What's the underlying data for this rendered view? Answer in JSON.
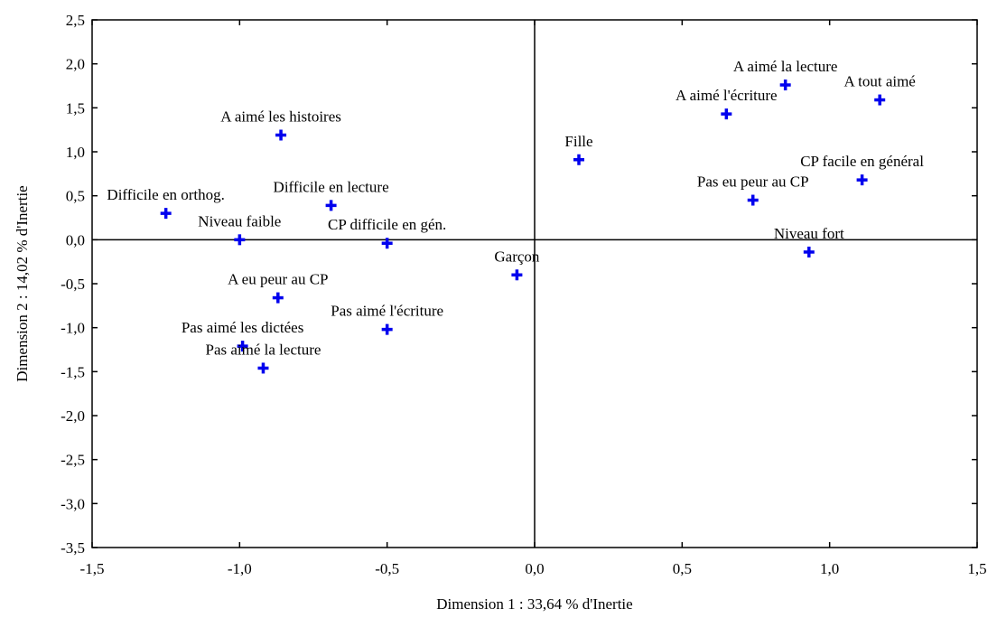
{
  "chart_data": {
    "type": "scatter",
    "xlabel": "Dimension 1 : 33,64 % d'Inertie",
    "ylabel": "Dimension 2 : 14,02 % d'Inertie",
    "xlim": [
      -1.5,
      1.5
    ],
    "ylim": [
      -3.5,
      2.5
    ],
    "x_ticks": [
      "-1,5",
      "-1,0",
      "-0,5",
      "0,0",
      "0,5",
      "1,0",
      "1,5"
    ],
    "y_ticks": [
      "2,5",
      "2,0",
      "1,5",
      "1,0",
      "0,5",
      "0,0",
      "-0,5",
      "-1,0",
      "-1,5",
      "-2,0",
      "-2,5",
      "-3,0",
      "-3,5"
    ],
    "marker_color": "#0000ee",
    "grid": false,
    "reference_lines": "x=0 and y=0",
    "points": [
      {
        "label": "A aimé la lecture",
        "x": 0.85,
        "y": 1.76
      },
      {
        "label": "A tout aimé",
        "x": 1.17,
        "y": 1.59
      },
      {
        "label": "A aimé l'écriture",
        "x": 0.65,
        "y": 1.43
      },
      {
        "label": "A aimé les histoires",
        "x": -0.86,
        "y": 1.19
      },
      {
        "label": "Fille",
        "x": 0.15,
        "y": 0.91
      },
      {
        "label": "CP facile en général",
        "x": 1.11,
        "y": 0.68
      },
      {
        "label": "Pas eu peur au CP",
        "x": 0.74,
        "y": 0.45
      },
      {
        "label": "Difficile en lecture",
        "x": -0.69,
        "y": 0.39
      },
      {
        "label": "Difficile en orthog.",
        "x": -1.25,
        "y": 0.3
      },
      {
        "label": "Niveau faible",
        "x": -1.0,
        "y": 0.0
      },
      {
        "label": "CP difficile en gén.",
        "x": -0.5,
        "y": -0.04
      },
      {
        "label": "Niveau fort",
        "x": 0.93,
        "y": -0.14
      },
      {
        "label": "Garçon",
        "x": -0.06,
        "y": -0.4
      },
      {
        "label": "A eu peur au CP",
        "x": -0.87,
        "y": -0.66
      },
      {
        "label": "Pas aimé l'écriture",
        "x": -0.5,
        "y": -1.02
      },
      {
        "label": "Pas aimé les dictées",
        "x": -0.99,
        "y": -1.21
      },
      {
        "label": "Pas aimé la lecture",
        "x": -0.92,
        "y": -1.46
      }
    ]
  }
}
